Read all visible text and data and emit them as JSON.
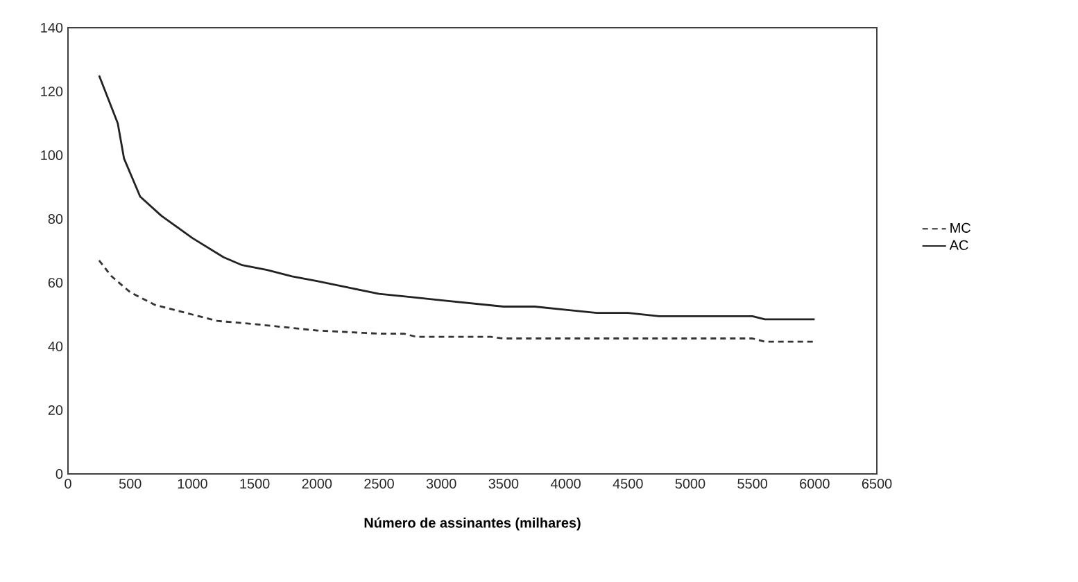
{
  "chart_data": {
    "type": "line",
    "xlabel": "**Número de assinantes (milhares)**",
    "xlim": [
      0,
      6500
    ],
    "ylim": [
      0,
      140
    ],
    "xticks": [
      0,
      500,
      1000,
      1500,
      2000,
      2500,
      3000,
      3500,
      4000,
      4500,
      5000,
      5500,
      6000,
      6500
    ],
    "yticks": [
      0,
      20,
      40,
      60,
      80,
      100,
      120,
      140
    ],
    "grid": false,
    "legend": "right",
    "marker": "none",
    "series": [
      {
        "name": "MC",
        "color": "#333333",
        "line_style": "dashed",
        "x": [
          250,
          350,
          500,
          700,
          1000,
          1200,
          1500,
          2000,
          2500,
          2700,
          2800,
          3400,
          3500,
          5500,
          5600,
          6000
        ],
        "values": [
          67,
          62,
          57,
          53,
          50,
          48,
          47,
          45,
          44,
          44,
          43,
          43,
          42.5,
          42.5,
          41.5,
          41.5
        ]
      },
      {
        "name": "AC",
        "color": "#222222",
        "line_style": "solid",
        "x": [
          250,
          400,
          450,
          580,
          750,
          1000,
          1250,
          1400,
          1600,
          1800,
          2000,
          2250,
          2500,
          2750,
          3000,
          3250,
          3500,
          3750,
          4000,
          4250,
          4500,
          4750,
          5000,
          5250,
          5500,
          5600,
          6000
        ],
        "values": [
          125,
          110,
          99,
          87,
          81,
          74,
          68,
          65.5,
          64,
          62,
          60.5,
          58.5,
          56.5,
          55.5,
          54.5,
          53.5,
          52.5,
          52.5,
          51.5,
          50.5,
          50.5,
          49.5,
          49.5,
          49.5,
          49.5,
          48.5,
          48.5
        ]
      }
    ]
  }
}
